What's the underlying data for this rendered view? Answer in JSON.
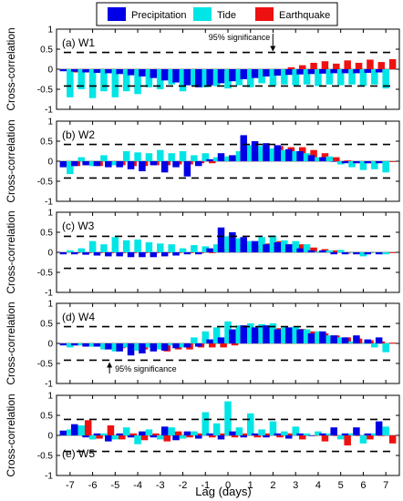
{
  "colors": {
    "precip": "#0000e6",
    "tide": "#00e5e5",
    "quake": "#ee1111"
  },
  "legend": [
    {
      "label": "Precipitation",
      "color": "#0000e6"
    },
    {
      "label": "Tide",
      "color": "#00e5e5"
    },
    {
      "label": "Earthquake",
      "color": "#ee1111"
    }
  ],
  "chart_data": {
    "type": "bar",
    "xlabel": "Lag (days)",
    "ylabel": "Cross-correlation",
    "x": [
      -7,
      -6.5,
      -6,
      -5.5,
      -5,
      -4.5,
      -4,
      -3.5,
      -3,
      -2.5,
      -2,
      -1.5,
      -1,
      -0.5,
      0,
      0.5,
      1,
      1.5,
      2,
      2.5,
      3,
      3.5,
      4,
      4.5,
      5,
      5.5,
      6,
      6.5,
      7
    ],
    "xticks": [
      -7,
      -6,
      -5,
      -4,
      -3,
      -2,
      -1,
      0,
      1,
      2,
      3,
      4,
      5,
      6,
      7
    ],
    "ylim": [
      -1,
      1
    ],
    "yticks": [
      -1,
      -0.5,
      0,
      0.5,
      1
    ],
    "ytick_labels": [
      "-1",
      "-0.5",
      "0",
      "0.5",
      "1"
    ],
    "series_names": [
      "Precipitation",
      "Tide",
      "Earthquake"
    ],
    "panels": [
      {
        "label": "(a) W1",
        "significance": 0.42,
        "annotation": {
          "text": "95% significance",
          "at_lag": 1.75
        },
        "precip": [
          -0.05,
          -0.06,
          -0.08,
          -0.09,
          -0.1,
          -0.12,
          -0.15,
          -0.18,
          -0.22,
          -0.28,
          -0.33,
          -0.4,
          -0.45,
          -0.4,
          -0.35,
          -0.3,
          -0.25,
          -0.22,
          -0.18,
          -0.16,
          -0.14,
          -0.13,
          -0.12,
          -0.11,
          -0.1,
          -0.1,
          -0.1,
          -0.09,
          -0.08
        ],
        "tide": [
          -0.7,
          -0.5,
          -0.72,
          -0.55,
          -0.7,
          -0.55,
          -0.62,
          -0.45,
          -0.5,
          -0.38,
          -0.55,
          -0.4,
          -0.45,
          -0.42,
          -0.48,
          -0.4,
          -0.45,
          -0.35,
          -0.42,
          -0.38,
          -0.4,
          -0.38,
          -0.42,
          -0.38,
          -0.4,
          -0.38,
          -0.42,
          -0.38,
          -0.48
        ],
        "quake": [
          -0.08,
          -0.06,
          -0.06,
          -0.07,
          -0.05,
          -0.06,
          -0.07,
          -0.05,
          -0.06,
          -0.05,
          -0.04,
          -0.05,
          -0.05,
          -0.05,
          -0.02,
          -0.02,
          -0.03,
          -0.02,
          -0.02,
          0.05,
          0.1,
          0.16,
          0.2,
          0.14,
          0.22,
          0.16,
          0.24,
          0.18,
          0.25
        ]
      },
      {
        "label": "(b) W2",
        "significance": 0.42,
        "precip": [
          -0.15,
          -0.12,
          -0.1,
          -0.12,
          -0.15,
          -0.15,
          -0.2,
          -0.25,
          -0.1,
          -0.28,
          -0.15,
          -0.38,
          -0.12,
          0.05,
          0.2,
          0.15,
          0.65,
          0.5,
          0.45,
          0.4,
          0.3,
          0.25,
          0.15,
          0.1,
          0.0,
          -0.05,
          -0.05,
          -0.05,
          -0.05
        ],
        "tide": [
          -0.32,
          0.1,
          -0.12,
          0.15,
          -0.1,
          0.25,
          0.22,
          0.2,
          0.28,
          0.2,
          0.25,
          0.15,
          0.2,
          0.1,
          0.12,
          0.25,
          0.4,
          0.38,
          0.32,
          0.28,
          0.25,
          0.2,
          0.1,
          0.12,
          -0.08,
          -0.15,
          -0.22,
          -0.2,
          -0.28
        ],
        "quake": [
          -0.12,
          -0.1,
          -0.12,
          -0.08,
          -0.1,
          -0.12,
          -0.12,
          -0.1,
          -0.1,
          -0.08,
          -0.08,
          -0.05,
          -0.05,
          0.05,
          0.12,
          0.2,
          0.2,
          0.3,
          0.38,
          0.35,
          0.35,
          0.28,
          0.2,
          0.1,
          0.02,
          -0.05,
          -0.05,
          -0.02,
          -0.02
        ]
      },
      {
        "label": "(c) W3",
        "significance": 0.4,
        "precip": [
          -0.05,
          -0.05,
          -0.06,
          -0.08,
          -0.1,
          -0.1,
          -0.12,
          -0.12,
          -0.12,
          -0.1,
          -0.08,
          -0.05,
          -0.05,
          0.1,
          0.62,
          0.5,
          0.38,
          0.28,
          0.2,
          0.25,
          0.2,
          0.1,
          0.05,
          0.05,
          -0.05,
          -0.05,
          -0.05,
          -0.05,
          -0.05
        ],
        "tide": [
          0.05,
          0.1,
          0.28,
          0.2,
          0.38,
          0.3,
          0.32,
          0.25,
          0.22,
          0.2,
          0.1,
          0.18,
          0.15,
          0.2,
          0.4,
          0.35,
          0.28,
          0.38,
          0.42,
          0.3,
          0.28,
          0.2,
          0.02,
          0.05,
          0.06,
          0.0,
          -0.1,
          0.0,
          -0.05
        ],
        "quake": [
          -0.02,
          -0.02,
          -0.02,
          -0.02,
          -0.02,
          -0.02,
          -0.02,
          -0.02,
          -0.02,
          -0.02,
          -0.02,
          -0.02,
          -0.02,
          0.1,
          0.3,
          0.25,
          0.18,
          0.22,
          0.28,
          0.2,
          0.2,
          0.12,
          0.08,
          0.05,
          -0.03,
          0.0,
          -0.02,
          0.0,
          -0.02
        ]
      },
      {
        "label": "(d) W4",
        "significance": 0.42,
        "annotation": {
          "text": "95% significance",
          "at_lag": -5.25
        },
        "precip": [
          -0.05,
          -0.05,
          -0.08,
          -0.08,
          -0.15,
          -0.2,
          -0.3,
          -0.25,
          -0.2,
          -0.18,
          -0.12,
          -0.1,
          -0.08,
          0.1,
          0.15,
          0.35,
          0.45,
          0.4,
          0.45,
          0.35,
          0.4,
          0.35,
          0.25,
          0.3,
          0.2,
          0.15,
          0.2,
          0.1,
          0.15
        ],
        "tide": [
          -0.1,
          -0.05,
          -0.08,
          -0.15,
          -0.2,
          -0.1,
          -0.18,
          -0.1,
          -0.15,
          -0.05,
          -0.1,
          0.15,
          0.3,
          0.4,
          0.55,
          0.45,
          0.5,
          0.48,
          0.5,
          0.4,
          0.42,
          0.35,
          0.3,
          0.2,
          0.15,
          0.05,
          0.0,
          -0.1,
          -0.22
        ],
        "quake": [
          -0.05,
          -0.06,
          -0.05,
          -0.1,
          -0.12,
          -0.1,
          -0.15,
          -0.1,
          -0.2,
          -0.15,
          -0.15,
          -0.1,
          -0.1,
          -0.1,
          -0.05,
          0.1,
          0.35,
          0.35,
          0.38,
          0.32,
          0.36,
          0.3,
          0.25,
          0.2,
          0.15,
          0.12,
          0.08,
          0.05,
          0.02
        ]
      },
      {
        "label": "(e) W5",
        "significance": 0.4,
        "precip": [
          0.12,
          0.28,
          -0.05,
          0.05,
          -0.15,
          0.05,
          -0.05,
          0.1,
          -0.05,
          0.22,
          -0.12,
          0.1,
          -0.08,
          0.05,
          -0.1,
          0.1,
          -0.05,
          0.05,
          -0.05,
          0.05,
          -0.08,
          0.05,
          0.0,
          0.05,
          0.2,
          0.05,
          0.2,
          0.05,
          0.35
        ],
        "tide": [
          0.15,
          0.25,
          -0.1,
          0.05,
          -0.1,
          0.2,
          -0.22,
          0.15,
          -0.1,
          0.2,
          -0.08,
          0.1,
          0.58,
          0.3,
          0.85,
          0.2,
          0.55,
          0.15,
          0.35,
          0.1,
          0.22,
          0.05,
          0.1,
          0.05,
          -0.1,
          0.05,
          -0.2,
          0.05,
          0.22
        ],
        "quake": [
          0.2,
          0.38,
          -0.08,
          0.25,
          -0.1,
          0.05,
          -0.12,
          0.05,
          -0.15,
          0.1,
          -0.05,
          0.05,
          -0.05,
          0.05,
          -0.05,
          0.05,
          -0.05,
          0.05,
          -0.05,
          0.05,
          -0.1,
          0.0,
          -0.15,
          0.0,
          -0.25,
          0.0,
          -0.1,
          0.0,
          -0.2
        ]
      }
    ]
  }
}
